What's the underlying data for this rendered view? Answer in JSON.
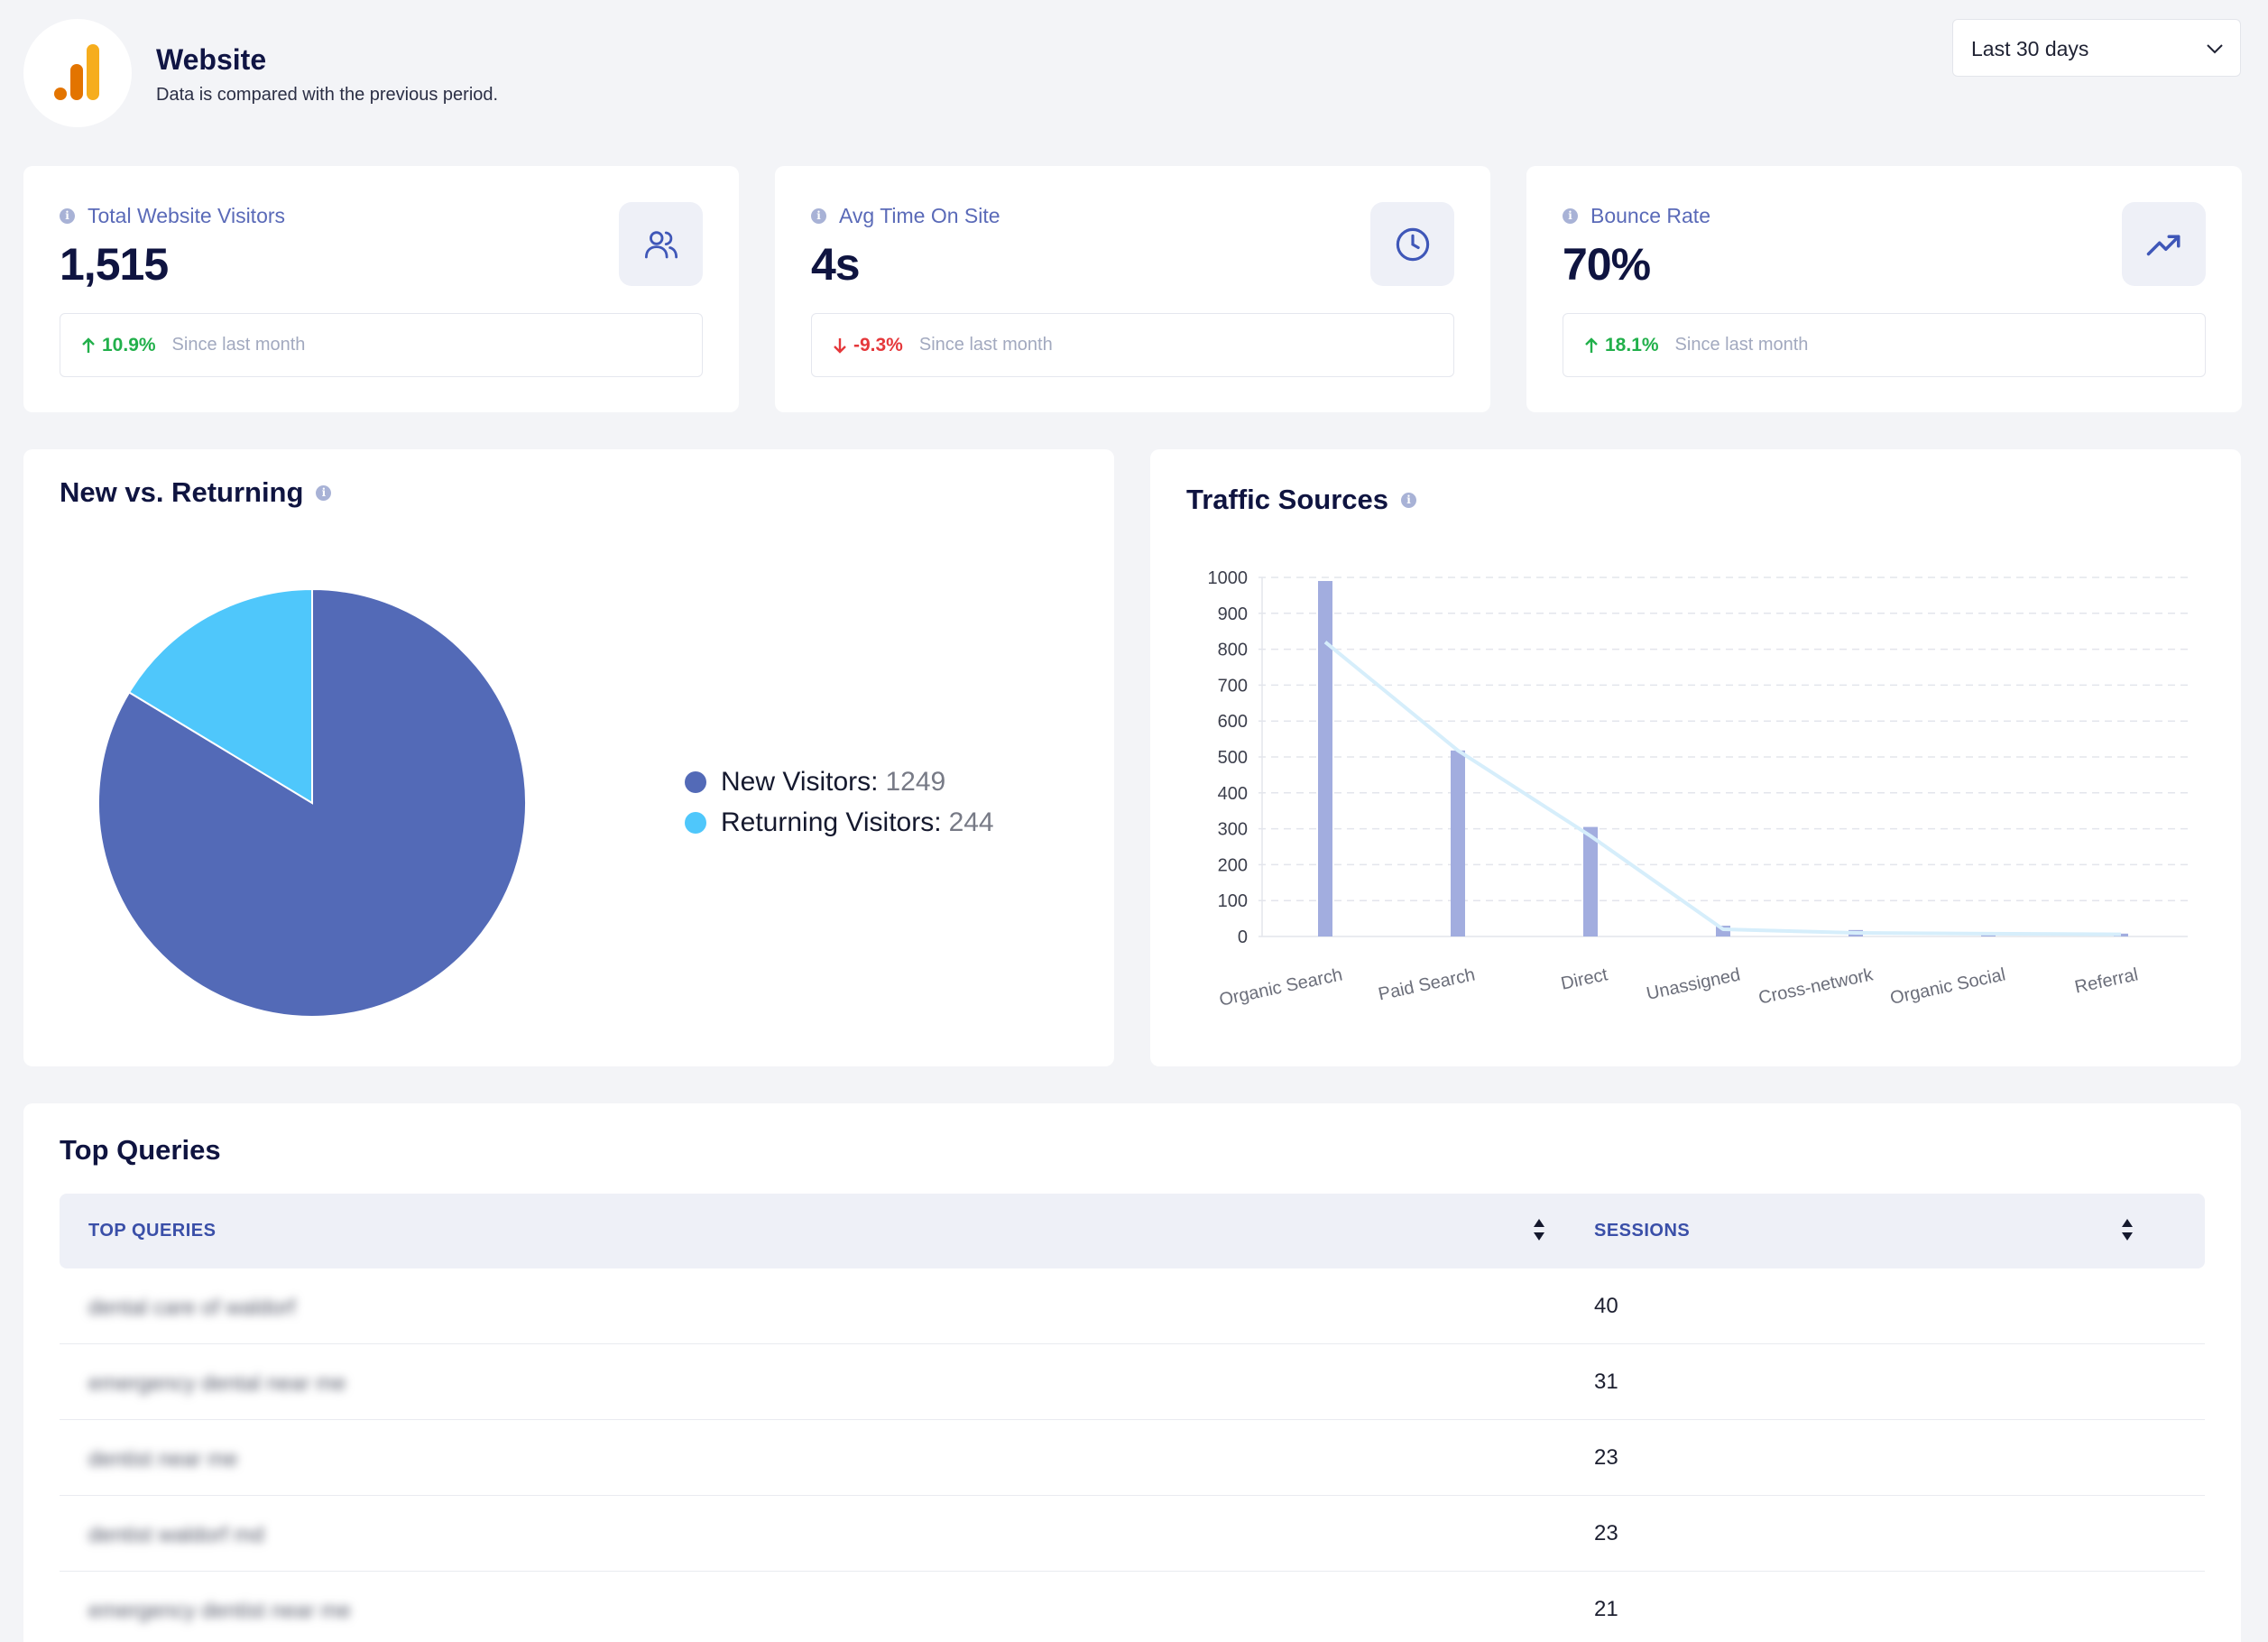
{
  "header": {
    "title": "Website",
    "subtitle": "Data is compared with the previous period.",
    "period": "Last 30 days",
    "logo": "analytics-bar-logo"
  },
  "stats": [
    {
      "label": "Total Website Visitors",
      "value": "1,515",
      "delta": "10.9%",
      "direction": "up",
      "since": "Since last month",
      "icon": "users-icon"
    },
    {
      "label": "Avg Time On Site",
      "value": "4s",
      "delta": "-9.3%",
      "direction": "down",
      "since": "Since last month",
      "icon": "clock-icon"
    },
    {
      "label": "Bounce Rate",
      "value": "70%",
      "delta": "18.1%",
      "direction": "up",
      "since": "Since last month",
      "icon": "trending-up-icon"
    }
  ],
  "colors": {
    "primary": "#536ab7",
    "secondary": "#4fc7fb",
    "bar": "#a2addf",
    "line": "#d6eefb",
    "up": "#22b04b",
    "down": "#e5383b"
  },
  "new_vs_returning": {
    "title": "New vs. Returning",
    "legend": [
      {
        "label": "New Visitors:",
        "value": "1249"
      },
      {
        "label": "Returning Visitors:",
        "value": "244"
      }
    ]
  },
  "traffic": {
    "title": "Traffic Sources"
  },
  "chart_data": [
    {
      "type": "pie",
      "title": "New vs. Returning",
      "categories": [
        "New Visitors",
        "Returning Visitors"
      ],
      "values": [
        1249,
        244
      ]
    },
    {
      "type": "bar",
      "title": "Traffic Sources",
      "categories": [
        "Organic Search",
        "Paid Search",
        "Direct",
        "Unassigned",
        "Cross-network",
        "Organic Social",
        "Referral"
      ],
      "values": [
        990,
        518,
        305,
        30,
        18,
        12,
        8
      ],
      "trend": [
        820,
        518,
        280,
        20,
        10,
        8,
        6
      ],
      "ylim": [
        0,
        1000
      ],
      "yticks": [
        0,
        100,
        200,
        300,
        400,
        500,
        600,
        700,
        800,
        900,
        1000
      ],
      "grid": true
    }
  ],
  "queries": {
    "title": "Top Queries",
    "col_query": "TOP QUERIES",
    "col_sessions": "SESSIONS",
    "rows": [
      {
        "query": "dental care of waldorf",
        "sessions": "40"
      },
      {
        "query": "emergency dental near me",
        "sessions": "31"
      },
      {
        "query": "dentist near me",
        "sessions": "23"
      },
      {
        "query": "dentist waldorf md",
        "sessions": "23"
      },
      {
        "query": "emergency dentist near me",
        "sessions": "21"
      }
    ]
  }
}
